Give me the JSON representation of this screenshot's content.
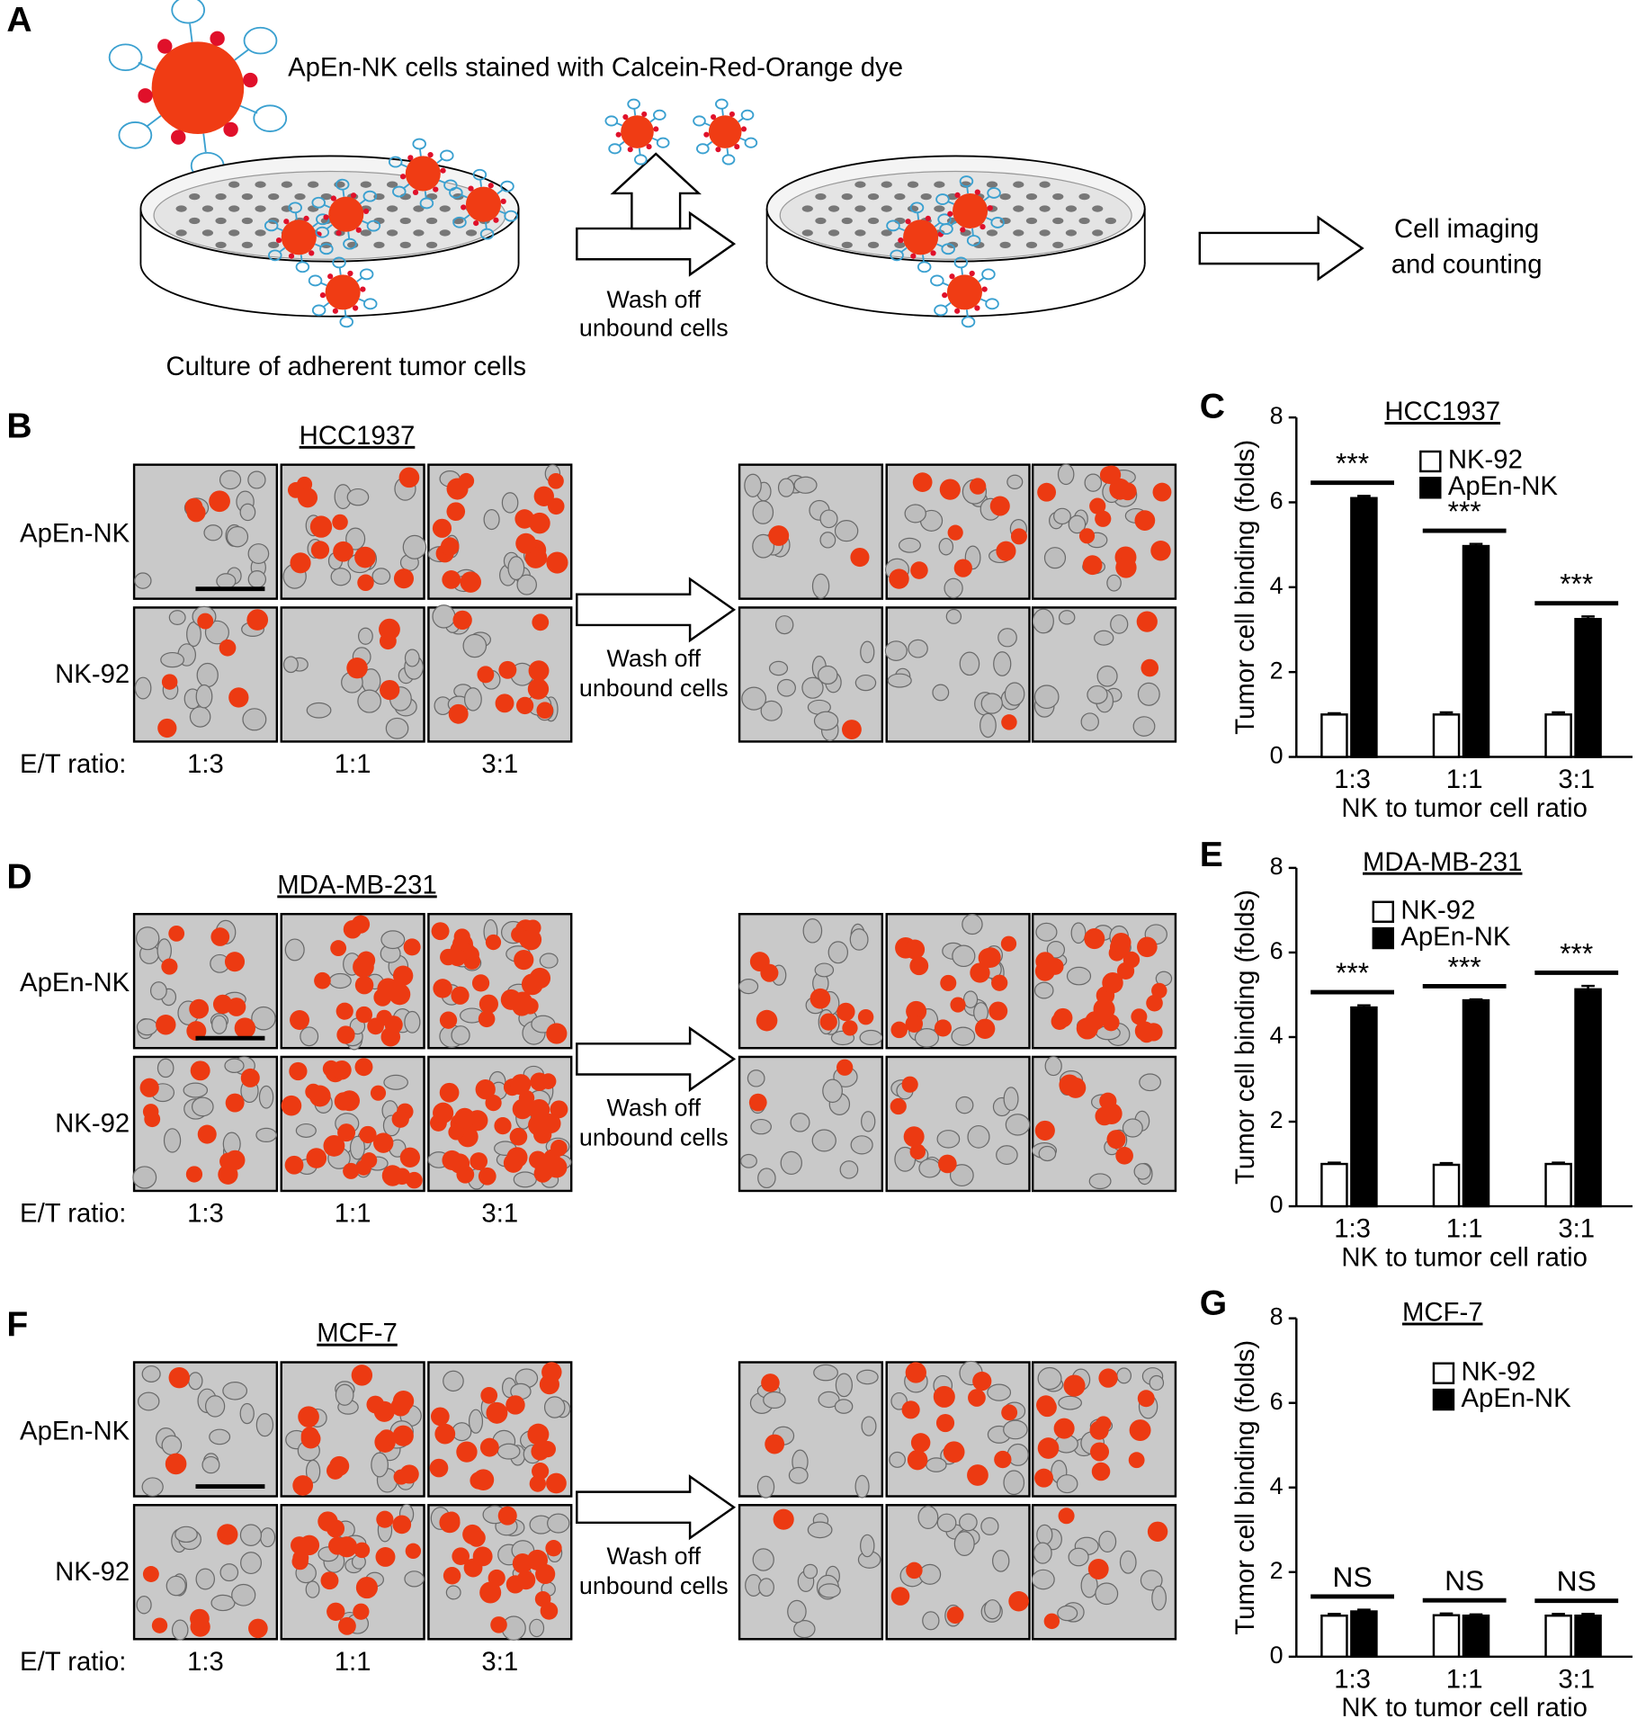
{
  "panel_labels": [
    "A",
    "B",
    "C",
    "D",
    "E",
    "F",
    "G"
  ],
  "diagram": {
    "stain_label": "ApEn-NK cells stained with Calcein-Red-Orange  dye",
    "culture_label": "Culture of adherent tumor cells",
    "wash_label": [
      "Wash off",
      "unbound cells"
    ],
    "imaging_label": [
      "Cell imaging",
      "and counting"
    ]
  },
  "image_panels": [
    {
      "title": "HCC1937",
      "rows": [
        "ApEn-NK",
        "NK-92"
      ],
      "ratio_label": "E/T ratio:",
      "ratios": [
        "1:3",
        "1:1",
        "3:1"
      ],
      "wash_label": [
        "Wash off",
        "unbound cells"
      ]
    },
    {
      "title": "MDA-MB-231",
      "rows": [
        "ApEn-NK",
        "NK-92"
      ],
      "ratio_label": "E/T ratio:",
      "ratios": [
        "1:3",
        "1:1",
        "3:1"
      ],
      "wash_label": [
        "Wash off",
        "unbound cells"
      ]
    },
    {
      "title": "MCF-7",
      "rows": [
        "ApEn-NK",
        "NK-92"
      ],
      "ratio_label": "E/T ratio:",
      "ratios": [
        "1:3",
        "1:1",
        "3:1"
      ],
      "wash_label": [
        "Wash off",
        "unbound cells"
      ]
    }
  ],
  "chart_data": [
    {
      "type": "bar",
      "title": "HCC1937",
      "x_label": "NK to tumor cell ratio",
      "y_label": "Tumor cell binding (folds)",
      "categories": [
        "1:3",
        "1:1",
        "3:1"
      ],
      "series": [
        {
          "name": "NK-92",
          "color": "#ffffff",
          "values": [
            1.0,
            1.0,
            1.0
          ],
          "errors": [
            0.03,
            0.05,
            0.05
          ]
        },
        {
          "name": "ApEn-NK",
          "color": "#000000",
          "values": [
            6.1,
            4.97,
            3.25
          ],
          "errors": [
            0.05,
            0.05,
            0.06
          ]
        }
      ],
      "annotations": [
        "***",
        "***",
        "***"
      ],
      "ylim": [
        0,
        8
      ],
      "yticks": [
        0,
        2,
        4,
        6,
        8
      ]
    },
    {
      "type": "bar",
      "title": "MDA-MB-231",
      "x_label": "NK to tumor cell ratio",
      "y_label": "Tumor cell binding (folds)",
      "categories": [
        "1:3",
        "1:1",
        "3:1"
      ],
      "series": [
        {
          "name": "NK-92",
          "color": "#ffffff",
          "values": [
            1.0,
            0.98,
            1.0
          ],
          "errors": [
            0.03,
            0.04,
            0.03
          ]
        },
        {
          "name": "ApEn-NK",
          "color": "#000000",
          "values": [
            4.7,
            4.87,
            5.13
          ],
          "errors": [
            0.05,
            0.02,
            0.08
          ]
        }
      ],
      "annotations": [
        "***",
        "***",
        "***"
      ],
      "ylim": [
        0,
        8
      ],
      "yticks": [
        0,
        2,
        4,
        6,
        8
      ]
    },
    {
      "type": "bar",
      "title": "MCF-7",
      "x_label": "NK to tumor cell ratio",
      "y_label": "Tumor cell binding (folds)",
      "categories": [
        "1:3",
        "1:1",
        "3:1"
      ],
      "series": [
        {
          "name": "NK-92",
          "color": "#ffffff",
          "values": [
            0.97,
            0.98,
            0.97
          ],
          "errors": [
            0.04,
            0.04,
            0.04
          ]
        },
        {
          "name": "ApEn-NK",
          "color": "#000000",
          "values": [
            1.07,
            0.97,
            0.97
          ],
          "errors": [
            0.04,
            0.03,
            0.04
          ]
        }
      ],
      "annotations": [
        "NS",
        "NS",
        "NS"
      ],
      "ylim": [
        0,
        8
      ],
      "yticks": [
        0,
        2,
        4,
        6,
        8
      ]
    }
  ]
}
